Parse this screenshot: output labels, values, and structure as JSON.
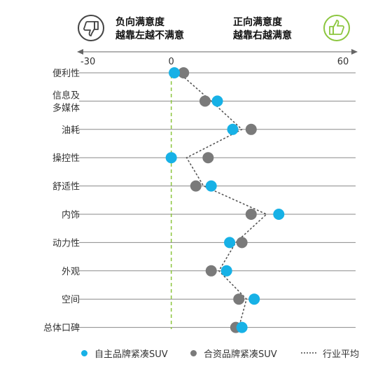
{
  "header": {
    "negative_title": "负向满意度",
    "negative_sub": "越靠左越不满意",
    "positive_title": "正向满意度",
    "positive_sub": "越靠右越满意"
  },
  "colors": {
    "domestic": "#17b1e6",
    "joint": "#7a7a7a",
    "zero_line": "#8cc63f",
    "thumb_up": "#8cc63f",
    "thumb_down": "#444444"
  },
  "icons": {
    "negative": "thumbs-down-icon",
    "positive": "thumbs-up-icon"
  },
  "chart_data": {
    "type": "scatter",
    "xlim": [
      -30,
      60
    ],
    "x_ticks": [
      "-30",
      "0",
      "60"
    ],
    "categories": [
      "便利性",
      "信息及多媒体",
      "油耗",
      "操控性",
      "舒适性",
      "内饰",
      "动力性",
      "外观",
      "空间",
      "总体口碑"
    ],
    "category_lines": [
      [
        "便利性"
      ],
      [
        "信息及",
        "多媒体"
      ],
      [
        "油耗"
      ],
      [
        "操控性"
      ],
      [
        "舒适性"
      ],
      [
        "内饰"
      ],
      [
        "动力性"
      ],
      [
        "外观"
      ],
      [
        "空间"
      ],
      [
        "总体口碑"
      ]
    ],
    "series": [
      {
        "name": "自主品牌紧凑SUV",
        "values": [
          1,
          15,
          20,
          0,
          13,
          35,
          19,
          18,
          27,
          23
        ]
      },
      {
        "name": "合资品牌紧凑SUV",
        "values": [
          4,
          11,
          26,
          12,
          8,
          26,
          23,
          13,
          22,
          21
        ]
      },
      {
        "name": "行业平均",
        "values": [
          2.5,
          13,
          23,
          5,
          10.5,
          31,
          21,
          15.5,
          24.5,
          22
        ]
      }
    ],
    "legend_position": "bottom"
  }
}
